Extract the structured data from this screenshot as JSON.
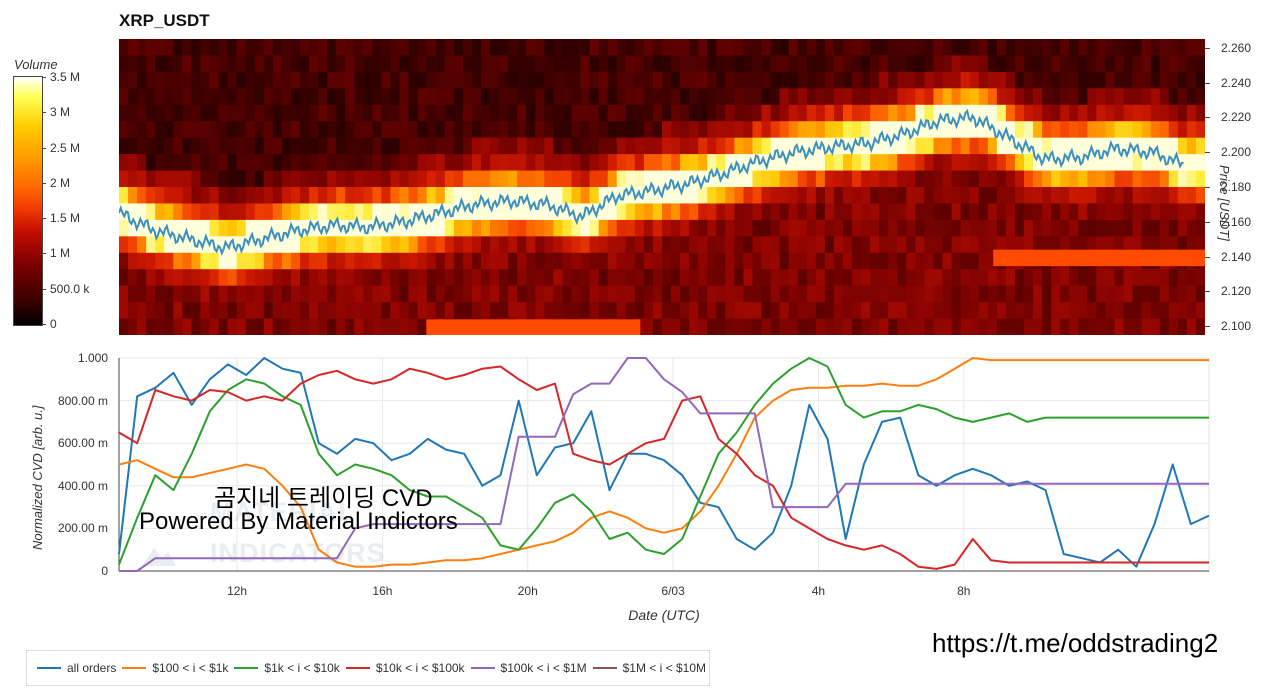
{
  "title": "XRP_USDT",
  "colorbar": {
    "title": "Volume",
    "labels": [
      "3.5 M",
      "3 M",
      "2.5 M",
      "2 M",
      "1.5 M",
      "1 M",
      "500.0 k",
      "0"
    ],
    "values": [
      3500000,
      3000000,
      2500000,
      2000000,
      1500000,
      1000000,
      500000,
      0
    ]
  },
  "price_axis": {
    "label": "Price [USDT]",
    "ticks": [
      "2.260",
      "2.240",
      "2.220",
      "2.200",
      "2.180",
      "2.160",
      "2.140",
      "2.120",
      "2.100"
    ]
  },
  "cvd_axis": {
    "label": "Normalized CVD [arb. u.]",
    "ticks": [
      "1.000",
      "800.00 m",
      "600.00 m",
      "400.00 m",
      "200.00 m",
      "0"
    ]
  },
  "x_axis": {
    "title": "Date (UTC)",
    "ticks": [
      "12h",
      "16h",
      "20h",
      "6/03",
      "4h",
      "8h"
    ]
  },
  "overlay": {
    "line1": "곰지네 트레이딩 CVD",
    "line2": "Powered By Material Indictors"
  },
  "watermark": {
    "top": "MATERIAL",
    "bottom": "INDICATORS"
  },
  "url": "https://t.me/oddstrading2",
  "legend": [
    {
      "label": "all orders",
      "color": "#1f77b4"
    },
    {
      "label": "$100 < i < $1k",
      "color": "#ff7f0e"
    },
    {
      "label": "$1k < i < $10k",
      "color": "#2ca02c"
    },
    {
      "label": "$10k < i < $100k",
      "color": "#d62728"
    },
    {
      "label": "$100k < i < $1M",
      "color": "#9467bd"
    },
    {
      "label": "$1M < i < $10M",
      "color": "#8c564b"
    }
  ],
  "chart_data": [
    {
      "type": "heatmap",
      "title": "XRP_USDT",
      "xlabel": "",
      "ylabel": "Price [USDT]",
      "ylim": [
        2.095,
        2.265
      ],
      "price_line": {
        "color": "#3a8fbf",
        "x_hours": [
          0,
          1,
          2,
          3,
          4,
          5,
          6,
          7,
          8,
          9,
          10,
          11,
          12,
          13,
          14,
          15,
          16,
          17,
          18,
          19,
          20,
          21,
          22,
          23,
          24,
          25,
          26,
          27,
          28,
          29,
          30
        ],
        "values": [
          2.165,
          2.155,
          2.15,
          2.145,
          2.15,
          2.155,
          2.158,
          2.157,
          2.16,
          2.165,
          2.17,
          2.172,
          2.17,
          2.163,
          2.175,
          2.178,
          2.182,
          2.188,
          2.195,
          2.2,
          2.203,
          2.205,
          2.21,
          2.218,
          2.22,
          2.208,
          2.196,
          2.197,
          2.202,
          2.2,
          2.192
        ]
      }
    },
    {
      "type": "line",
      "xlabel": "Date (UTC)",
      "ylabel": "Normalized CVD [arb. u.]",
      "ylim": [
        0,
        1
      ],
      "x_hours": [
        0,
        0.5,
        1,
        1.5,
        2,
        2.5,
        3,
        3.5,
        4,
        4.5,
        5,
        5.5,
        6,
        6.5,
        7,
        7.5,
        8,
        8.5,
        9,
        9.5,
        10,
        10.5,
        11,
        11.5,
        12,
        12.5,
        13,
        13.5,
        14,
        14.5,
        15,
        15.5,
        16,
        16.5,
        17,
        17.5,
        18,
        18.5,
        19,
        19.5,
        20,
        20.5,
        21,
        21.5,
        22,
        22.5,
        23,
        23.5,
        24,
        24.5,
        25,
        25.5,
        26,
        26.5,
        27,
        27.5,
        28,
        28.5,
        29,
        29.5,
        30
      ],
      "x_ticks_hours": {
        "12h": 3.25,
        "16h": 7.25,
        "20h": 11.25,
        "6/03": 15.25,
        "4h": 19.25,
        "8h": 23.25
      },
      "series": [
        {
          "name": "all orders",
          "color": "#1f77b4",
          "values": [
            0.08,
            0.82,
            0.86,
            0.93,
            0.78,
            0.9,
            0.97,
            0.92,
            1.0,
            0.95,
            0.93,
            0.6,
            0.55,
            0.62,
            0.6,
            0.52,
            0.55,
            0.62,
            0.57,
            0.55,
            0.4,
            0.45,
            0.8,
            0.45,
            0.58,
            0.6,
            0.75,
            0.38,
            0.55,
            0.55,
            0.52,
            0.45,
            0.32,
            0.3,
            0.15,
            0.1,
            0.18,
            0.4,
            0.78,
            0.62,
            0.15,
            0.5,
            0.7,
            0.72,
            0.45,
            0.4,
            0.45,
            0.48,
            0.45,
            0.4,
            0.42,
            0.38,
            0.08,
            0.06,
            0.04,
            0.1,
            0.02,
            0.22,
            0.5,
            0.22,
            0.26
          ]
        },
        {
          "name": "$100 < i < $1k",
          "color": "#ff7f0e",
          "values": [
            0.5,
            0.52,
            0.48,
            0.44,
            0.44,
            0.46,
            0.48,
            0.5,
            0.48,
            0.4,
            0.3,
            0.1,
            0.04,
            0.02,
            0.02,
            0.03,
            0.03,
            0.04,
            0.05,
            0.05,
            0.06,
            0.08,
            0.1,
            0.12,
            0.14,
            0.18,
            0.25,
            0.28,
            0.25,
            0.2,
            0.18,
            0.2,
            0.28,
            0.4,
            0.55,
            0.72,
            0.8,
            0.85,
            0.86,
            0.86,
            0.87,
            0.87,
            0.88,
            0.87,
            0.87,
            0.9,
            0.95,
            1.0,
            0.99,
            0.99,
            0.99,
            0.99,
            0.99,
            0.99,
            0.99,
            0.99,
            0.99,
            0.99,
            0.99,
            0.99,
            0.99
          ]
        },
        {
          "name": "$1k < i < $10k",
          "color": "#2ca02c",
          "values": [
            0.03,
            0.25,
            0.45,
            0.38,
            0.55,
            0.75,
            0.85,
            0.9,
            0.88,
            0.82,
            0.78,
            0.55,
            0.45,
            0.5,
            0.48,
            0.45,
            0.38,
            0.35,
            0.35,
            0.3,
            0.25,
            0.12,
            0.1,
            0.2,
            0.32,
            0.36,
            0.28,
            0.15,
            0.18,
            0.1,
            0.08,
            0.15,
            0.35,
            0.55,
            0.65,
            0.78,
            0.88,
            0.95,
            1.0,
            0.96,
            0.78,
            0.72,
            0.75,
            0.75,
            0.78,
            0.76,
            0.72,
            0.7,
            0.72,
            0.74,
            0.7,
            0.72,
            0.72,
            0.72,
            0.72,
            0.72,
            0.72,
            0.72,
            0.72,
            0.72,
            0.72
          ]
        },
        {
          "name": "$10k < i < $100k",
          "color": "#d62728",
          "values": [
            0.65,
            0.6,
            0.85,
            0.82,
            0.8,
            0.85,
            0.84,
            0.8,
            0.82,
            0.8,
            0.88,
            0.92,
            0.94,
            0.9,
            0.88,
            0.9,
            0.95,
            0.93,
            0.9,
            0.92,
            0.95,
            0.96,
            0.9,
            0.85,
            0.88,
            0.55,
            0.52,
            0.5,
            0.55,
            0.6,
            0.62,
            0.8,
            0.82,
            0.62,
            0.55,
            0.45,
            0.4,
            0.25,
            0.2,
            0.15,
            0.12,
            0.1,
            0.12,
            0.08,
            0.02,
            0.01,
            0.03,
            0.15,
            0.05,
            0.04,
            0.04,
            0.04,
            0.04,
            0.04,
            0.04,
            0.04,
            0.04,
            0.04,
            0.04,
            0.04,
            0.04
          ]
        },
        {
          "name": "$100k < i < $1M",
          "color": "#9467bd",
          "values": [
            0.0,
            0.0,
            0.06,
            0.06,
            0.06,
            0.06,
            0.06,
            0.06,
            0.06,
            0.06,
            0.06,
            0.06,
            0.06,
            0.2,
            0.22,
            0.22,
            0.22,
            0.22,
            0.22,
            0.22,
            0.22,
            0.22,
            0.63,
            0.63,
            0.63,
            0.83,
            0.88,
            0.88,
            1.0,
            1.0,
            0.9,
            0.84,
            0.74,
            0.74,
            0.74,
            0.74,
            0.3,
            0.3,
            0.3,
            0.3,
            0.41,
            0.41,
            0.41,
            0.41,
            0.41,
            0.41,
            0.41,
            0.41,
            0.41,
            0.41,
            0.41,
            0.41,
            0.41,
            0.41,
            0.41,
            0.41,
            0.41,
            0.41,
            0.41,
            0.41,
            0.41
          ]
        },
        {
          "name": "$1M < i < $10M",
          "color": "#8c564b",
          "values": []
        }
      ]
    }
  ]
}
